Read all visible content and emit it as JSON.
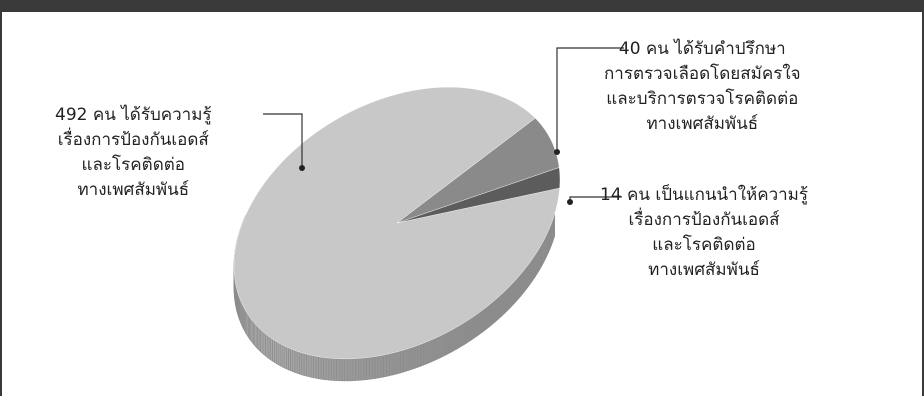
{
  "chart_data": {
    "type": "pie",
    "style": "3d-grayscale",
    "slices": [
      {
        "value": 492,
        "lines": [
          "492 คน ได้รับความรู้",
          "เรื่องการป้องกันเอดส์",
          "และโรคติดต่อ",
          "ทางเพศสัมพันธ์"
        ],
        "color": "#c8c8c8",
        "side_color": "#8c8c8c"
      },
      {
        "value": 40,
        "lines": [
          "40 คน ได้รับคำปรึกษา",
          "การตรวจเลือดโดยสมัครใจ",
          "และบริการตรวจโรคติดต่อ",
          "ทางเพศสัมพันธ์"
        ],
        "color": "#8a8a8a",
        "side_color": "#5e5e5e"
      },
      {
        "value": 14,
        "lines": [
          "14 คน เป็นแกนนำให้ความรู้",
          "เรื่องการป้องกันเอดส์",
          "และโรคติดต่อ",
          "ทางเพศสัมพันธ์"
        ],
        "color": "#5c5c5c",
        "side_color": "#3e3e3e"
      }
    ]
  }
}
